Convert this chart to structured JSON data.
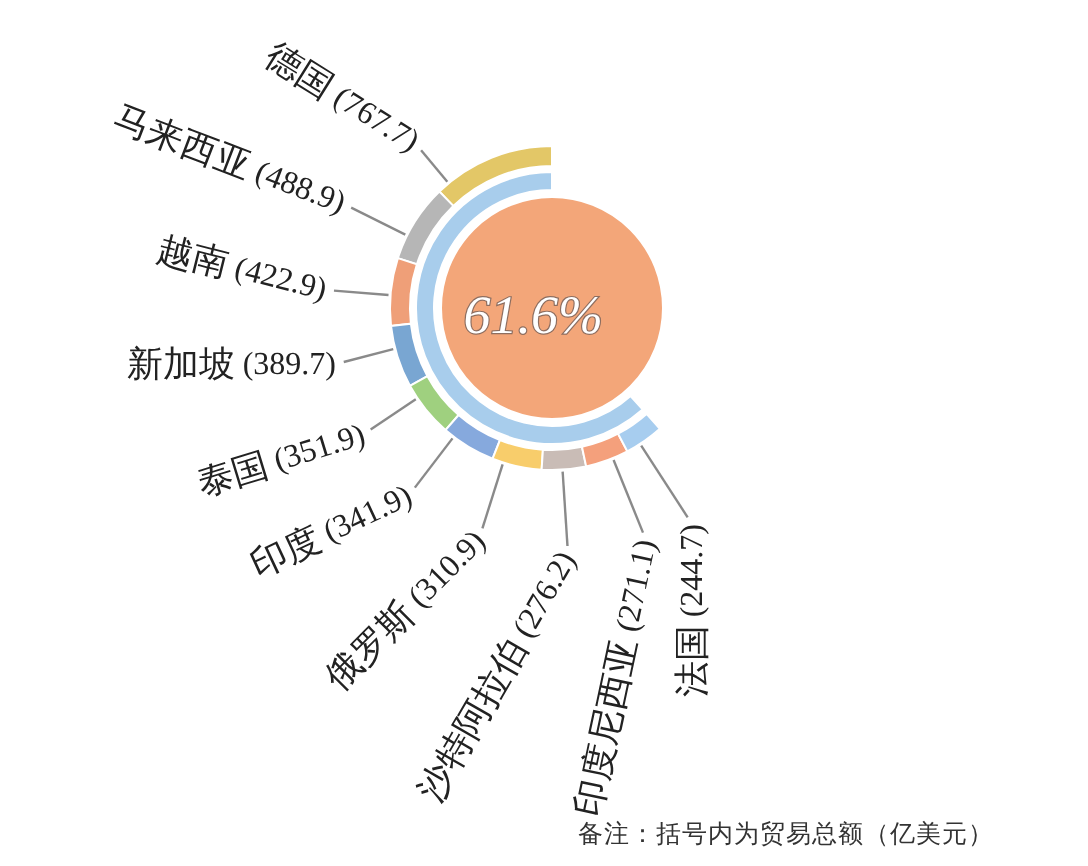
{
  "chart_data": [
    {
      "type": "donut",
      "categories": [
        null
      ],
      "values": [
        61.6
      ],
      "colors": [
        "#a8cdec"
      ],
      "value_labels": [
        "61.6%"
      ]
    },
    {
      "type": "donut",
      "categories": [
        "德国",
        "马来西亚",
        "越南",
        "新加坡",
        "泰国",
        "印度",
        "俄罗斯",
        "沙特阿拉伯",
        "印度尼西亚",
        "法国"
      ],
      "values": [
        767.7,
        488.9,
        422.9,
        389.7,
        351.9,
        341.9,
        310.9,
        276.2,
        271.1,
        244.7
      ],
      "colors": [
        "#e3c767",
        "#b6b6b6",
        "#ef9f78",
        "#79a6d2",
        "#9fd07f",
        "#86a9dd",
        "#f8cd6b",
        "#c9bcb6",
        "#f4a07c",
        "#a7cdef"
      ],
      "value_labels": [
        "(767.7)",
        "(488.9)",
        "(422.9)",
        "(389.7)",
        "(351.9)",
        "(341.9)",
        "(310.9)",
        "(276.2)",
        "(271.1)",
        "(244.7)"
      ],
      "annotations": [
        "备注：括号内为贸易总额（亿美元）"
      ]
    }
  ]
}
